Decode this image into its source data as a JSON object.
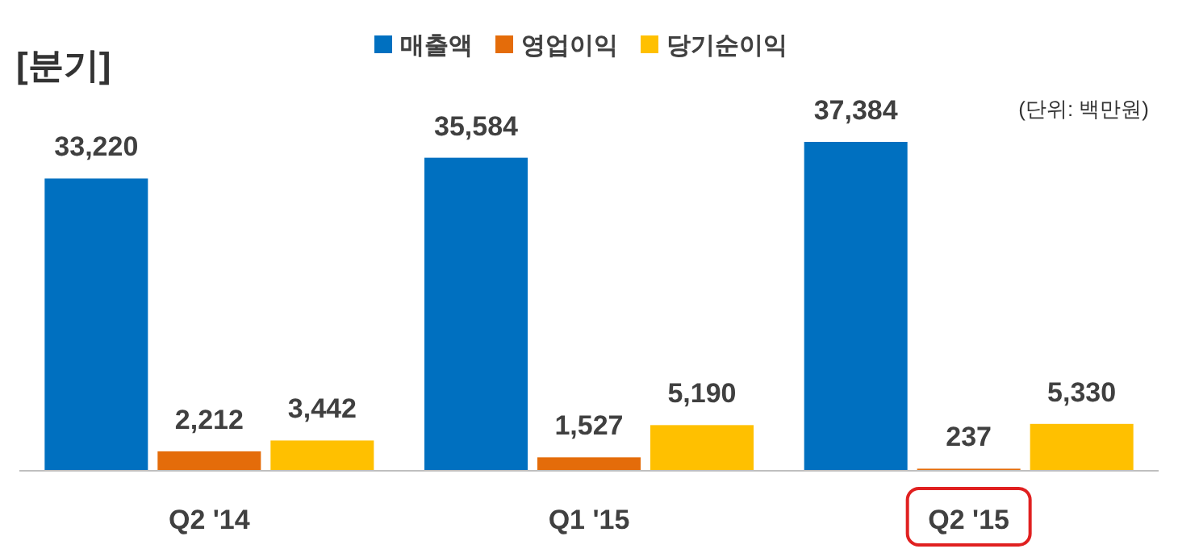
{
  "chart_data": {
    "type": "bar",
    "title": "[분기]",
    "categories": [
      "Q2 '14",
      "Q1 '15",
      "Q2 '15"
    ],
    "series": [
      {
        "name": "매출액",
        "color": "#0070c0",
        "values": [
          33220,
          35584,
          37384
        ],
        "value_labels": [
          "33,220",
          "35,584",
          "37,384"
        ]
      },
      {
        "name": "영업이익",
        "color": "#e46c0a",
        "values": [
          2212,
          1527,
          237
        ],
        "value_labels": [
          "2,212",
          "1,527",
          "237"
        ]
      },
      {
        "name": "당기순이익",
        "color": "#ffc000",
        "values": [
          3442,
          5190,
          5330
        ],
        "value_labels": [
          "3,442",
          "5,190",
          "5,330"
        ]
      }
    ],
    "legend": "top",
    "annotations": [
      "(단위: 백만원)"
    ]
  }
}
